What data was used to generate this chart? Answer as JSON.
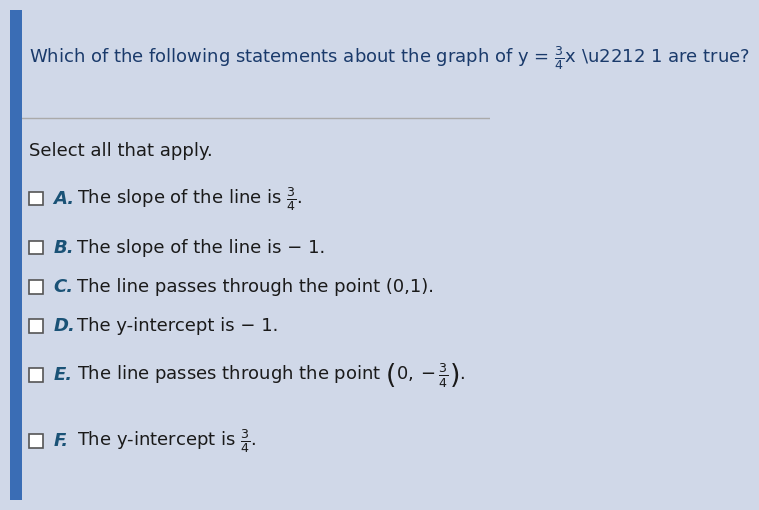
{
  "background_color": "#d0d8e8",
  "content_bg": "#e8ecf4",
  "title": "Which of the following statements about the graph of y = \\frac{3}{4}x - 1 are true?",
  "instruction": "Select all that apply.",
  "options": [
    {
      "label": "A.",
      "text_parts": [
        "The slope of the line is ",
        "\\frac{3}{4}",
        "."
      ]
    },
    {
      "label": "B.",
      "text_parts": [
        "The slope of the line is  − 1."
      ]
    },
    {
      "label": "C.",
      "text_parts": [
        "The line passes through the point (0,1)."
      ]
    },
    {
      "label": "D.",
      "text_parts": [
        "The y-intercept is  − 1."
      ]
    },
    {
      "label": "E.",
      "text_parts": [
        "The line passes through the point ",
        "\\left(0, -\\frac{3}{4}\\right)",
        "."
      ]
    },
    {
      "label": "F.",
      "text_parts": [
        "The y-intercept is ",
        "\\frac{3}{4}",
        "."
      ]
    }
  ],
  "title_color": "#1a3a6b",
  "label_color": "#1a5276",
  "text_color": "#1a1a1a",
  "instruction_color": "#1a1a1a",
  "checkbox_color": "#555555",
  "separator_color": "#aaaaaa",
  "title_fontsize": 13,
  "option_fontsize": 13,
  "instruction_fontsize": 13
}
